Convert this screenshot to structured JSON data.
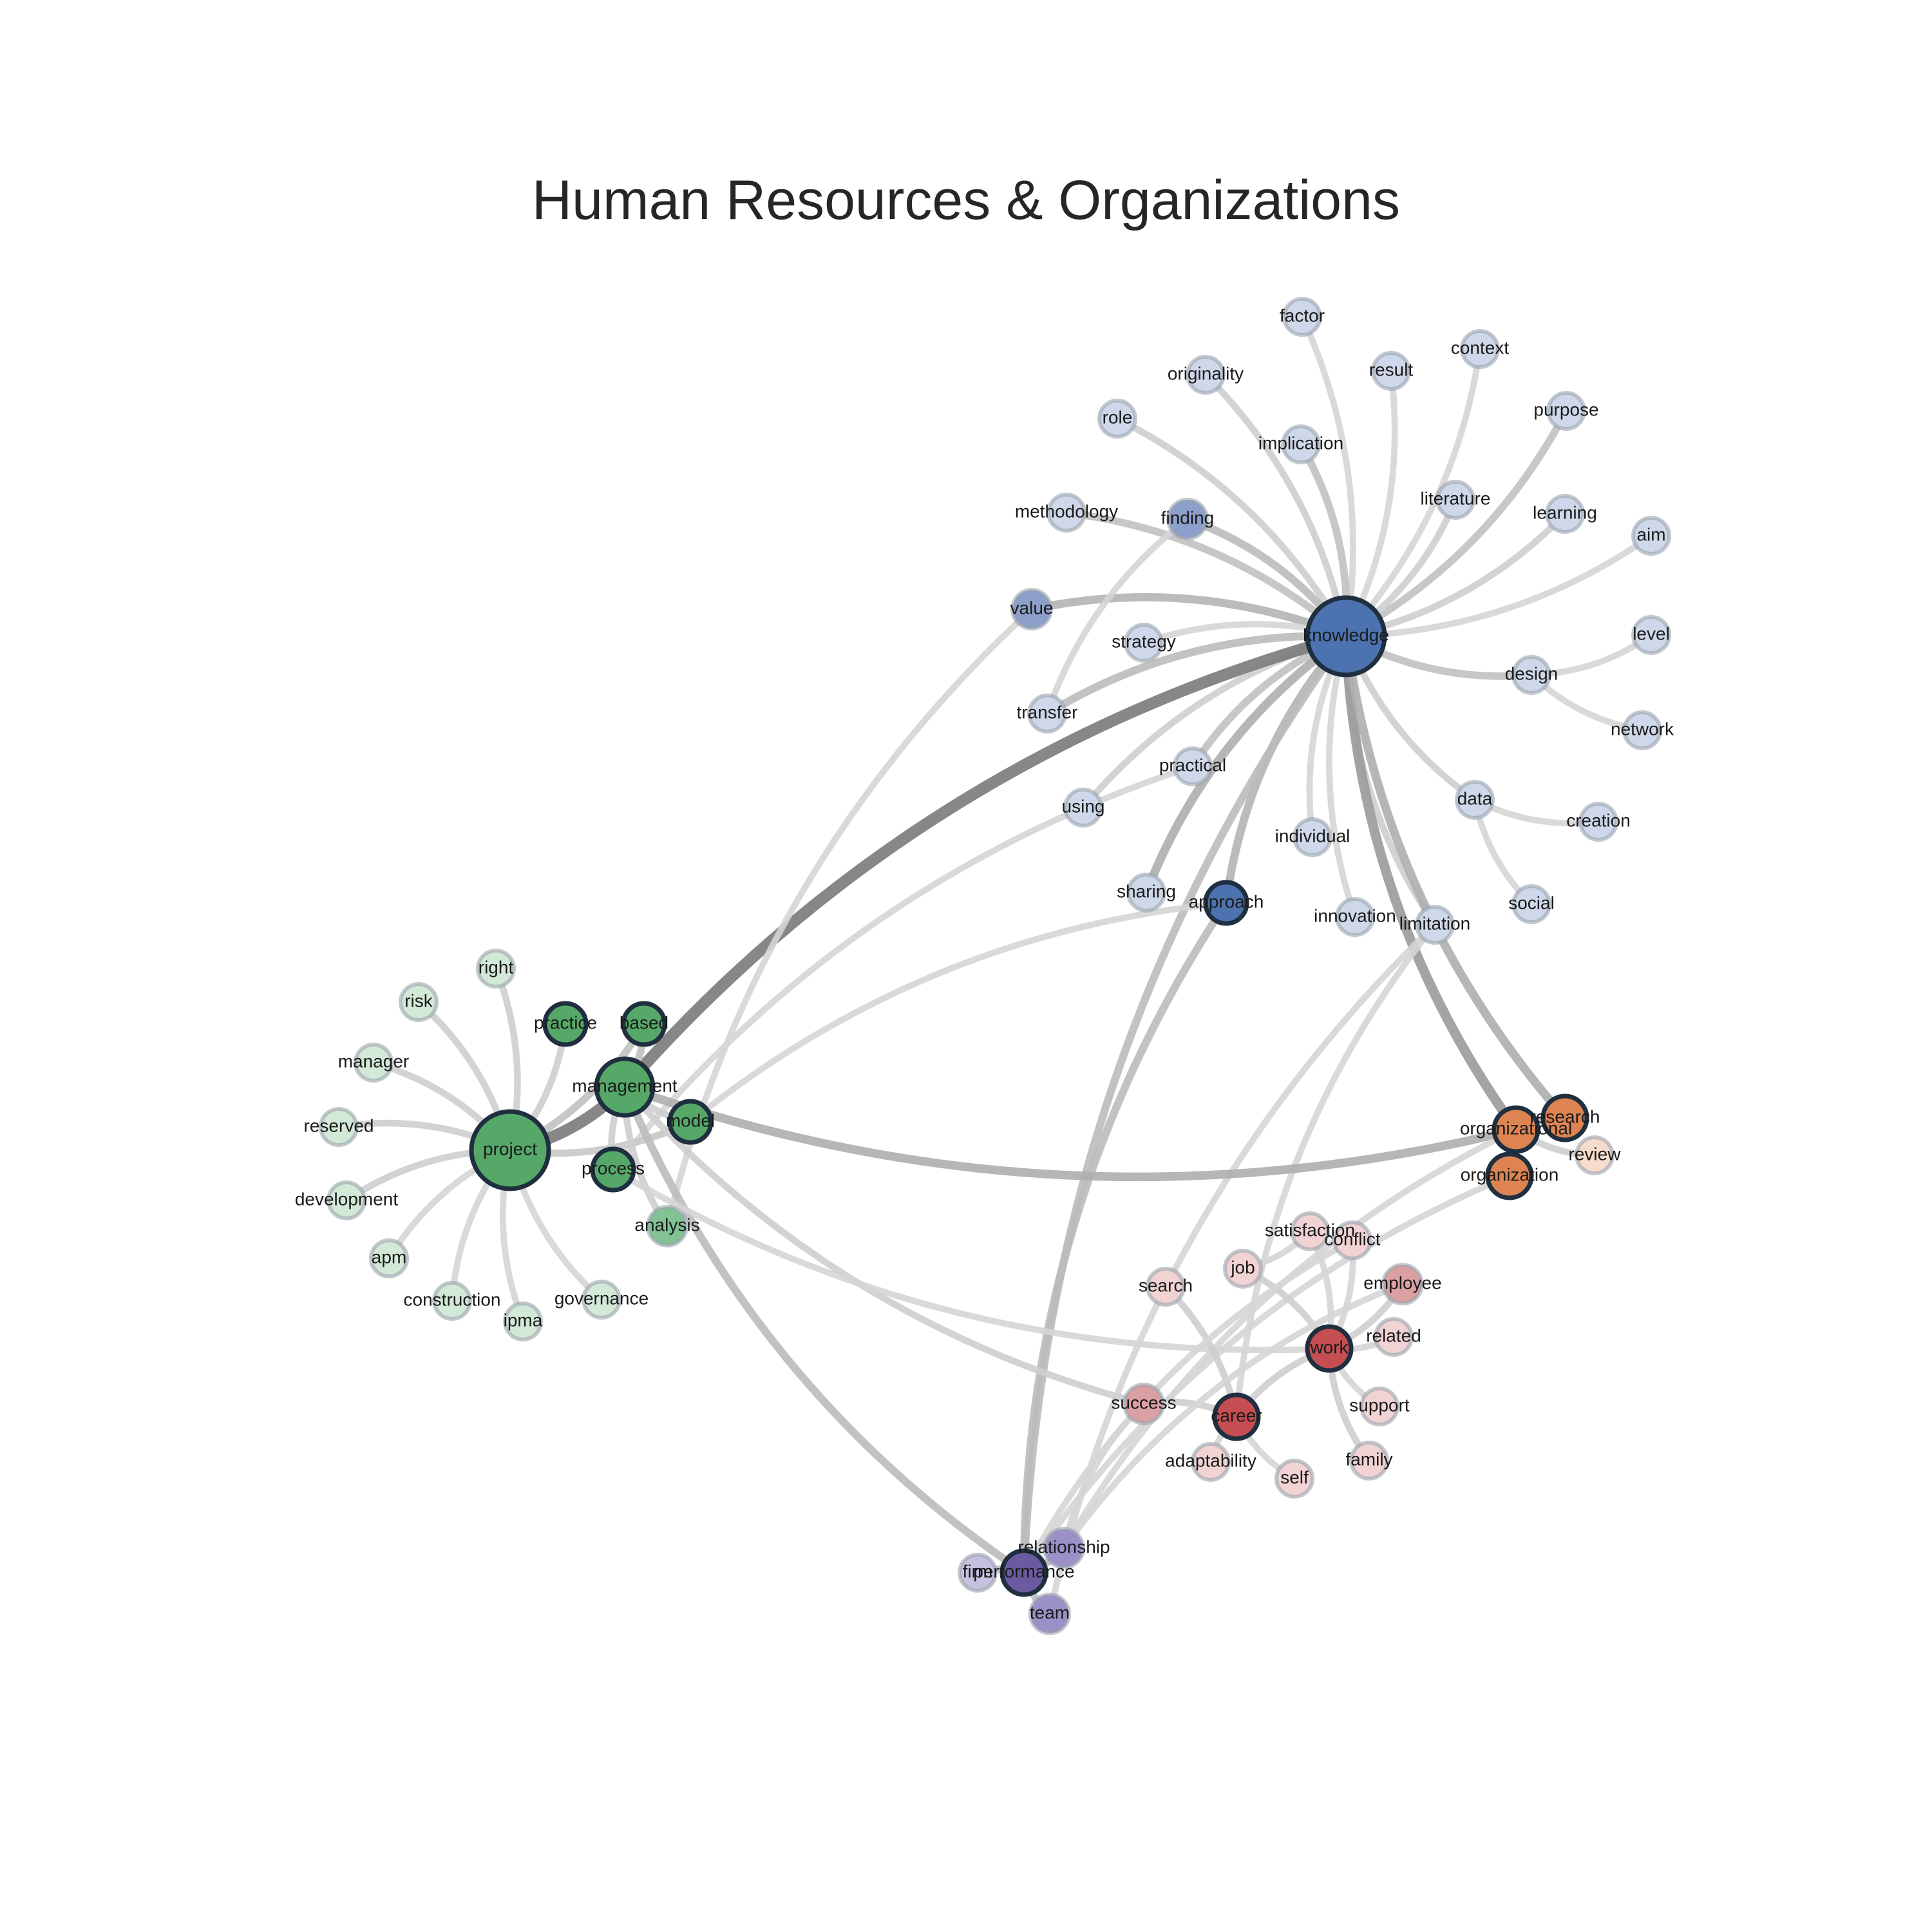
{
  "title": "Human Resources & Organizations",
  "groups": {
    "knowledge": {
      "core": "#4c72b0",
      "mid": "#8da0cb",
      "light": "#cfd8ea"
    },
    "project": {
      "core": "#55a868",
      "mid": "#82c295",
      "light": "#d3e9d8"
    },
    "organization": {
      "core": "#dd8452",
      "light": "#f6dccb"
    },
    "work": {
      "core": "#c44e52",
      "mid": "#dba0a2",
      "light": "#f1d3d4"
    },
    "performance": {
      "core": "#6a5ba0",
      "mid": "#9c90c9",
      "light": "#c7c1e0"
    }
  },
  "nodes": [
    {
      "id": "knowledge",
      "label": "knowledge",
      "group": "knowledge",
      "weight": 1.0
    },
    {
      "id": "factor",
      "label": "factor",
      "group": "knowledge",
      "weight": 0.15
    },
    {
      "id": "originality",
      "label": "originality",
      "group": "knowledge",
      "weight": 0.15
    },
    {
      "id": "result",
      "label": "result",
      "group": "knowledge",
      "weight": 0.15
    },
    {
      "id": "context",
      "label": "context",
      "group": "knowledge",
      "weight": 0.15
    },
    {
      "id": "role",
      "label": "role",
      "group": "knowledge",
      "weight": 0.15
    },
    {
      "id": "implication",
      "label": "implication",
      "group": "knowledge",
      "weight": 0.15
    },
    {
      "id": "purpose",
      "label": "purpose",
      "group": "knowledge",
      "weight": 0.15
    },
    {
      "id": "methodology",
      "label": "methodology",
      "group": "knowledge",
      "weight": 0.15
    },
    {
      "id": "finding",
      "label": "finding",
      "group": "knowledge",
      "weight": 0.4
    },
    {
      "id": "literature",
      "label": "literature",
      "group": "knowledge",
      "weight": 0.15
    },
    {
      "id": "learning",
      "label": "learning",
      "group": "knowledge",
      "weight": 0.15
    },
    {
      "id": "aim",
      "label": "aim",
      "group": "knowledge",
      "weight": 0.15
    },
    {
      "id": "value",
      "label": "value",
      "group": "knowledge",
      "weight": 0.4
    },
    {
      "id": "strategy",
      "label": "strategy",
      "group": "knowledge",
      "weight": 0.15
    },
    {
      "id": "level",
      "label": "level",
      "group": "knowledge",
      "weight": 0.15
    },
    {
      "id": "design",
      "label": "design",
      "group": "knowledge",
      "weight": 0.15
    },
    {
      "id": "transfer",
      "label": "transfer",
      "group": "knowledge",
      "weight": 0.15
    },
    {
      "id": "network",
      "label": "network",
      "group": "knowledge",
      "weight": 0.15
    },
    {
      "id": "practical",
      "label": "practical",
      "group": "knowledge",
      "weight": 0.15
    },
    {
      "id": "using",
      "label": "using",
      "group": "knowledge",
      "weight": 0.15
    },
    {
      "id": "data",
      "label": "data",
      "group": "knowledge",
      "weight": 0.15
    },
    {
      "id": "creation",
      "label": "creation",
      "group": "knowledge",
      "weight": 0.15
    },
    {
      "id": "individual",
      "label": "individual",
      "group": "knowledge",
      "weight": 0.15
    },
    {
      "id": "sharing",
      "label": "sharing",
      "group": "knowledge",
      "weight": 0.15
    },
    {
      "id": "approach",
      "label": "approach",
      "group": "knowledge",
      "weight": 0.75
    },
    {
      "id": "social",
      "label": "social",
      "group": "knowledge",
      "weight": 0.15
    },
    {
      "id": "innovation",
      "label": "innovation",
      "group": "knowledge",
      "weight": 0.15
    },
    {
      "id": "limitation",
      "label": "limitation",
      "group": "knowledge",
      "weight": 0.15
    },
    {
      "id": "project",
      "label": "project",
      "group": "project",
      "weight": 1.0
    },
    {
      "id": "right",
      "label": "right",
      "group": "project",
      "weight": 0.15
    },
    {
      "id": "risk",
      "label": "risk",
      "group": "project",
      "weight": 0.15
    },
    {
      "id": "practice",
      "label": "practice",
      "group": "project",
      "weight": 0.75
    },
    {
      "id": "based",
      "label": "based",
      "group": "project",
      "weight": 0.75
    },
    {
      "id": "manager",
      "label": "manager",
      "group": "project",
      "weight": 0.15
    },
    {
      "id": "management",
      "label": "management",
      "group": "project",
      "weight": 1.0
    },
    {
      "id": "reserved",
      "label": "reserved",
      "group": "project",
      "weight": 0.15
    },
    {
      "id": "model",
      "label": "model",
      "group": "project",
      "weight": 0.75
    },
    {
      "id": "process",
      "label": "process",
      "group": "project",
      "weight": 0.75
    },
    {
      "id": "development",
      "label": "development",
      "group": "project",
      "weight": 0.15
    },
    {
      "id": "analysis",
      "label": "analysis",
      "group": "project",
      "weight": 0.4
    },
    {
      "id": "apm",
      "label": "apm",
      "group": "project",
      "weight": 0.15
    },
    {
      "id": "construction",
      "label": "construction",
      "group": "project",
      "weight": 0.15
    },
    {
      "id": "ipma",
      "label": "ipma",
      "group": "project",
      "weight": 0.15
    },
    {
      "id": "governance",
      "label": "governance",
      "group": "project",
      "weight": 0.15
    },
    {
      "id": "research",
      "label": "research",
      "group": "organization",
      "weight": 1.0
    },
    {
      "id": "organizational",
      "label": "organizational",
      "group": "organization",
      "weight": 1.0
    },
    {
      "id": "review",
      "label": "review",
      "group": "organization",
      "weight": 0.15
    },
    {
      "id": "organization",
      "label": "organization",
      "group": "organization",
      "weight": 1.0
    },
    {
      "id": "satisfaction",
      "label": "satisfaction",
      "group": "work",
      "weight": 0.15
    },
    {
      "id": "conflict",
      "label": "conflict",
      "group": "work",
      "weight": 0.15
    },
    {
      "id": "job",
      "label": "job",
      "group": "work",
      "weight": 0.15
    },
    {
      "id": "employee",
      "label": "employee",
      "group": "work",
      "weight": 0.4
    },
    {
      "id": "search",
      "label": "search",
      "group": "work",
      "weight": 0.15
    },
    {
      "id": "work",
      "label": "work",
      "group": "work",
      "weight": 1.0
    },
    {
      "id": "related",
      "label": "related",
      "group": "work",
      "weight": 0.15
    },
    {
      "id": "success",
      "label": "success",
      "group": "work",
      "weight": 0.4
    },
    {
      "id": "career",
      "label": "career",
      "group": "work",
      "weight": 1.0
    },
    {
      "id": "support",
      "label": "support",
      "group": "work",
      "weight": 0.15
    },
    {
      "id": "adaptability",
      "label": "adaptability",
      "group": "work",
      "weight": 0.15
    },
    {
      "id": "self",
      "label": "self",
      "group": "work",
      "weight": 0.15
    },
    {
      "id": "family",
      "label": "family",
      "group": "work",
      "weight": 0.15
    },
    {
      "id": "relationship",
      "label": "relationship",
      "group": "performance",
      "weight": 0.4
    },
    {
      "id": "firm",
      "label": "firm",
      "group": "performance",
      "weight": 0.15
    },
    {
      "id": "performance",
      "label": "performance",
      "group": "performance",
      "weight": 1.0
    },
    {
      "id": "team",
      "label": "team",
      "group": "performance",
      "weight": 0.4
    }
  ],
  "edges": [
    {
      "source": "knowledge",
      "target": "factor",
      "weight": 0.15
    },
    {
      "source": "knowledge",
      "target": "originality",
      "weight": 0.2
    },
    {
      "source": "knowledge",
      "target": "result",
      "weight": 0.15
    },
    {
      "source": "knowledge",
      "target": "context",
      "weight": 0.15
    },
    {
      "source": "knowledge",
      "target": "role",
      "weight": 0.2
    },
    {
      "source": "knowledge",
      "target": "implication",
      "weight": 0.3
    },
    {
      "source": "knowledge",
      "target": "purpose",
      "weight": 0.3
    },
    {
      "source": "knowledge",
      "target": "methodology",
      "weight": 0.3
    },
    {
      "source": "knowledge",
      "target": "finding",
      "weight": 0.35
    },
    {
      "source": "knowledge",
      "target": "literature",
      "weight": 0.2
    },
    {
      "source": "knowledge",
      "target": "learning",
      "weight": 0.2
    },
    {
      "source": "knowledge",
      "target": "aim",
      "weight": 0.15
    },
    {
      "source": "knowledge",
      "target": "value",
      "weight": 0.4
    },
    {
      "source": "knowledge",
      "target": "strategy",
      "weight": 0.15
    },
    {
      "source": "knowledge",
      "target": "design",
      "weight": 0.3
    },
    {
      "source": "knowledge",
      "target": "transfer",
      "weight": 0.35
    },
    {
      "source": "knowledge",
      "target": "practical",
      "weight": 0.3
    },
    {
      "source": "knowledge",
      "target": "using",
      "weight": 0.2
    },
    {
      "source": "knowledge",
      "target": "data",
      "weight": 0.2
    },
    {
      "source": "knowledge",
      "target": "individual",
      "weight": 0.15
    },
    {
      "source": "knowledge",
      "target": "sharing",
      "weight": 0.45
    },
    {
      "source": "knowledge",
      "target": "approach",
      "weight": 0.4
    },
    {
      "source": "knowledge",
      "target": "innovation",
      "weight": 0.15
    },
    {
      "source": "knowledge",
      "target": "limitation",
      "weight": 0.2
    },
    {
      "source": "knowledge",
      "target": "management",
      "weight": 0.85
    },
    {
      "source": "knowledge",
      "target": "organizational",
      "weight": 0.6
    },
    {
      "source": "knowledge",
      "target": "research",
      "weight": 0.45
    },
    {
      "source": "knowledge",
      "target": "performance",
      "weight": 0.35
    },
    {
      "source": "design",
      "target": "level",
      "weight": 0.15
    },
    {
      "source": "design",
      "target": "network",
      "weight": 0.15
    },
    {
      "source": "data",
      "target": "creation",
      "weight": 0.15
    },
    {
      "source": "data",
      "target": "social",
      "weight": 0.15
    },
    {
      "source": "finding",
      "target": "transfer",
      "weight": 0.15
    },
    {
      "source": "value",
      "target": "analysis",
      "weight": 0.15
    },
    {
      "source": "practical",
      "target": "process",
      "weight": 0.15
    },
    {
      "source": "approach",
      "target": "model",
      "weight": 0.15
    },
    {
      "source": "approach",
      "target": "performance",
      "weight": 0.35
    },
    {
      "source": "limitation",
      "target": "career",
      "weight": 0.15
    },
    {
      "source": "limitation",
      "target": "team",
      "weight": 0.15
    },
    {
      "source": "project",
      "target": "management",
      "weight": 0.85
    },
    {
      "source": "project",
      "target": "right",
      "weight": 0.2
    },
    {
      "source": "project",
      "target": "risk",
      "weight": 0.2
    },
    {
      "source": "project",
      "target": "practice",
      "weight": 0.2
    },
    {
      "source": "project",
      "target": "manager",
      "weight": 0.2
    },
    {
      "source": "project",
      "target": "reserved",
      "weight": 0.2
    },
    {
      "source": "project",
      "target": "development",
      "weight": 0.2
    },
    {
      "source": "project",
      "target": "apm",
      "weight": 0.15
    },
    {
      "source": "project",
      "target": "construction",
      "weight": 0.15
    },
    {
      "source": "project",
      "target": "ipma",
      "weight": 0.15
    },
    {
      "source": "project",
      "target": "governance",
      "weight": 0.15
    },
    {
      "source": "project",
      "target": "based",
      "weight": 0.3
    },
    {
      "source": "project",
      "target": "model",
      "weight": 0.25
    },
    {
      "source": "management",
      "target": "based",
      "weight": 0.3
    },
    {
      "source": "management",
      "target": "model",
      "weight": 0.2
    },
    {
      "source": "management",
      "target": "process",
      "weight": 0.2
    },
    {
      "source": "management",
      "target": "analysis",
      "weight": 0.2
    },
    {
      "source": "management",
      "target": "organizational",
      "weight": 0.45
    },
    {
      "source": "management",
      "target": "performance",
      "weight": 0.35
    },
    {
      "source": "management",
      "target": "success",
      "weight": 0.2
    },
    {
      "source": "process",
      "target": "work",
      "weight": 0.15
    },
    {
      "source": "research",
      "target": "organizational",
      "weight": 0.3
    },
    {
      "source": "organizational",
      "target": "review",
      "weight": 0.2
    },
    {
      "source": "organizational",
      "target": "organization",
      "weight": 0.3
    },
    {
      "source": "organization",
      "target": "performance",
      "weight": 0.15
    },
    {
      "source": "organizational",
      "target": "relationship",
      "weight": 0.15
    },
    {
      "source": "work",
      "target": "satisfaction",
      "weight": 0.15
    },
    {
      "source": "work",
      "target": "conflict",
      "weight": 0.15
    },
    {
      "source": "work",
      "target": "job",
      "weight": 0.2
    },
    {
      "source": "work",
      "target": "employee",
      "weight": 0.2
    },
    {
      "source": "work",
      "target": "related",
      "weight": 0.15
    },
    {
      "source": "work",
      "target": "support",
      "weight": 0.15
    },
    {
      "source": "work",
      "target": "family",
      "weight": 0.2
    },
    {
      "source": "work",
      "target": "career",
      "weight": 0.2
    },
    {
      "source": "career",
      "target": "search",
      "weight": 0.2
    },
    {
      "source": "career",
      "target": "success",
      "weight": 0.2
    },
    {
      "source": "career",
      "target": "adaptability",
      "weight": 0.15
    },
    {
      "source": "career",
      "target": "self",
      "weight": 0.15
    },
    {
      "source": "job",
      "target": "satisfaction",
      "weight": 0.15
    },
    {
      "source": "employee",
      "target": "relationship",
      "weight": 0.15
    },
    {
      "source": "conflict",
      "target": "performance",
      "weight": 0.15
    },
    {
      "source": "success",
      "target": "relationship",
      "weight": 0.15
    },
    {
      "source": "performance",
      "target": "firm",
      "weight": 0.3
    },
    {
      "source": "performance",
      "target": "relationship",
      "weight": 0.3
    },
    {
      "source": "performance",
      "target": "team",
      "weight": 0.3
    }
  ]
}
